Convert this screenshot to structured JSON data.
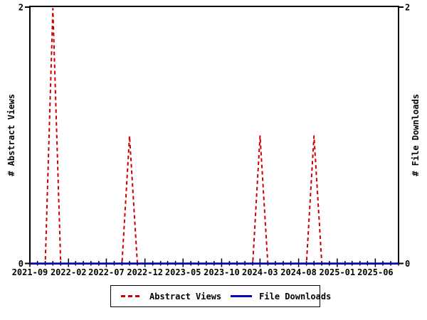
{
  "chart_data": {
    "type": "line",
    "title": "",
    "x_axis": {
      "start_month": "2021-09",
      "end_month": "2025-09",
      "tick_label_months": [
        "2021-09",
        "2022-02",
        "2022-07",
        "2022-12",
        "2023-05",
        "2023-10",
        "2024-03",
        "2024-08",
        "2025-01",
        "2025-06"
      ],
      "minor_tick_interval_months": 1
    },
    "y_axis_left": {
      "label": "# Abstract Views",
      "range": [
        0,
        2
      ],
      "tick_values": [
        0,
        2
      ],
      "tick_labels": [
        "0",
        "2"
      ]
    },
    "y_axis_right": {
      "label": "# File Downloads",
      "range": [
        0,
        2
      ],
      "tick_values": [
        0,
        2
      ],
      "tick_labels": [
        "0",
        "2"
      ]
    },
    "series": [
      {
        "name": "Abstract Views",
        "color": "#cc0000",
        "line_style": "dashed",
        "baseline_value": 0,
        "nonzero_points": [
          {
            "month": "2021-12",
            "value": 2
          },
          {
            "month": "2022-10",
            "value": 1
          },
          {
            "month": "2024-03",
            "value": 1
          },
          {
            "month": "2024-10",
            "value": 1
          }
        ]
      },
      {
        "name": "File Downloads",
        "color": "#0000bb",
        "line_style": "solid",
        "baseline_value": 0,
        "nonzero_points": []
      }
    ],
    "legend": {
      "position": "bottom-center",
      "entries": [
        "Abstract Views",
        "File Downloads"
      ]
    },
    "grid": false,
    "axis_color": "#000000",
    "background_color": "#ffffff"
  }
}
